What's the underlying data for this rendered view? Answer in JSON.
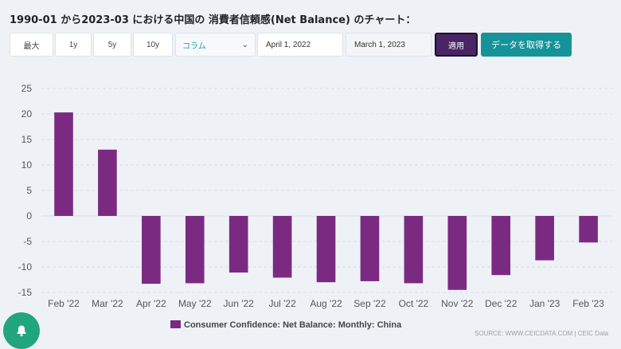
{
  "header": {
    "title": "1990-01 から2023-03 における中国の 消費者信頼感(Net Balance) のチャート："
  },
  "controls": {
    "max_label": "最大",
    "y1_label": "1y",
    "y5_label": "5y",
    "y10_label": "10y",
    "chart_type_value": "コラム",
    "start_date": "April 1, 2022",
    "end_date": "March 1, 2023",
    "apply_label": "適用",
    "fetch_label": "データを取得する"
  },
  "colors": {
    "bar": "#7b2a82",
    "apply": "#4a2566",
    "fetch": "#169399",
    "bell": "#21a57f"
  },
  "icons": {
    "dropdown": "chevron-down-icon",
    "notify": "bell-icon"
  },
  "footer": {
    "source": "SOURCE: WWW.CEICDATA.COM | CEIC Data"
  },
  "chart_data": {
    "type": "bar",
    "categories": [
      "Feb '22",
      "Mar '22",
      "Apr '22",
      "May '22",
      "Jun '22",
      "Jul '22",
      "Aug '22",
      "Sep '22",
      "Oct '22",
      "Nov '22",
      "Dec '22",
      "Jan '23",
      "Feb '23"
    ],
    "series": [
      {
        "name": "Consumer Confidence: Net Balance: Monthly: China",
        "values": [
          20.3,
          13.0,
          -13.3,
          -13.2,
          -11.1,
          -12.1,
          -13.0,
          -12.8,
          -13.2,
          -14.5,
          -11.6,
          -8.7,
          -5.2
        ]
      }
    ],
    "yticks": [
      25,
      20,
      15,
      10,
      5,
      0,
      -5,
      -10,
      -15
    ],
    "ylim": [
      -15,
      25
    ],
    "grid": true,
    "legend_position": "bottom"
  }
}
